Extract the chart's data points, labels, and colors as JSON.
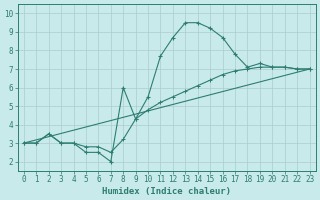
{
  "xlabel": "Humidex (Indice chaleur)",
  "bg_color": "#c8eaea",
  "line_color": "#2e7d72",
  "grid_color": "#aacccc",
  "xlim": [
    -0.5,
    23.5
  ],
  "ylim": [
    1.5,
    10.5
  ],
  "xticks": [
    0,
    1,
    2,
    3,
    4,
    5,
    6,
    7,
    8,
    9,
    10,
    11,
    12,
    13,
    14,
    15,
    16,
    17,
    18,
    19,
    20,
    21,
    22,
    23
  ],
  "yticks": [
    2,
    3,
    4,
    5,
    6,
    7,
    8,
    9,
    10
  ],
  "curve1_x": [
    0,
    1,
    2,
    3,
    4,
    5,
    6,
    7,
    8,
    9,
    10,
    11,
    12,
    13,
    14,
    15,
    16,
    17,
    18,
    19,
    20,
    21,
    22,
    23
  ],
  "curve1_y": [
    3.0,
    3.0,
    3.5,
    3.0,
    3.0,
    2.5,
    2.5,
    2.0,
    6.0,
    4.3,
    5.5,
    7.7,
    8.7,
    9.5,
    9.5,
    9.2,
    8.7,
    7.8,
    7.1,
    7.3,
    7.1,
    7.1,
    7.0,
    7.0
  ],
  "curve2_x": [
    0,
    23
  ],
  "curve2_y": [
    3.0,
    7.0
  ],
  "curve3_x": [
    0,
    1,
    2,
    3,
    4,
    5,
    6,
    7,
    8,
    9,
    10,
    11,
    12,
    13,
    14,
    15,
    16,
    17,
    18,
    19,
    20,
    21,
    22,
    23
  ],
  "curve3_y": [
    3.0,
    3.0,
    3.5,
    3.0,
    3.0,
    2.8,
    2.8,
    2.5,
    3.2,
    4.3,
    4.8,
    5.2,
    5.5,
    5.8,
    6.1,
    6.4,
    6.7,
    6.9,
    7.0,
    7.1,
    7.1,
    7.1,
    7.0,
    7.0
  ]
}
